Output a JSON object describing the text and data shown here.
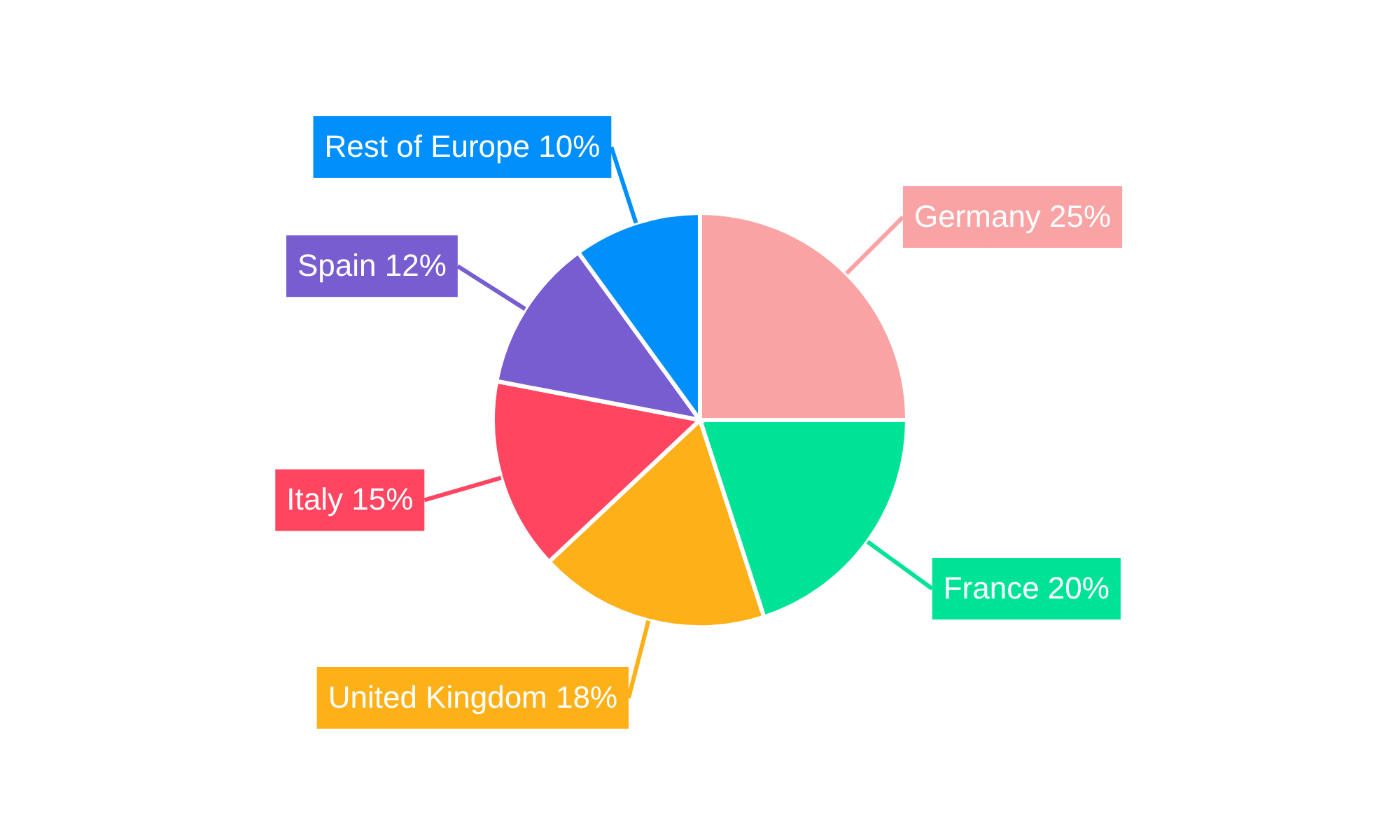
{
  "chart_data": {
    "type": "pie",
    "categories": [
      "Germany",
      "France",
      "United Kingdom",
      "Italy",
      "Spain",
      "Rest of Europe"
    ],
    "values": [
      25,
      20,
      18,
      15,
      12,
      10
    ],
    "value_labels": [
      "25%",
      "20%",
      "18%",
      "15%",
      "12%",
      "10%"
    ],
    "colors": [
      "#f9a3a4",
      "#00e396",
      "#feb019",
      "#ff4560",
      "#775dd0",
      "#008ffb"
    ]
  }
}
